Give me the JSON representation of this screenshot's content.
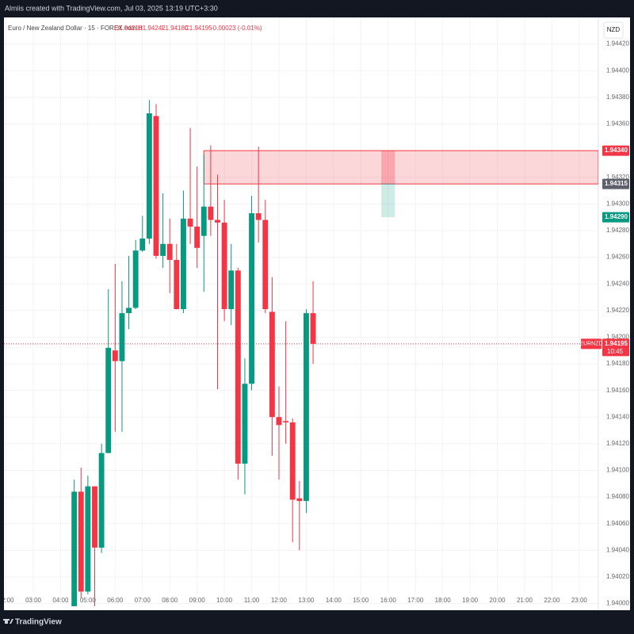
{
  "header": {
    "credit": "Almiis created with TradingView.com, Jul 03, 2025 13:19 UTC+3:30"
  },
  "footer": {
    "brand": "TradingView"
  },
  "chart_data": {
    "type": "candlestick",
    "legend": {
      "symbol": "Euro / New Zealand Dollar · 15 · FOREX.com",
      "open": "O1.94218",
      "high": "H1.94242",
      "low": "L1.94180",
      "close": "C1.94195",
      "change": "-0.00023 (-0.01%)"
    },
    "currency": "NZD",
    "up_color": "#089981",
    "down_color": "#f23645",
    "x": [
      4.5,
      4.75,
      5,
      5.25,
      5.5,
      5.75,
      6,
      6.25,
      6.5,
      6.75,
      7,
      7.25,
      7.5,
      7.75,
      8,
      8.25,
      8.5,
      8.75,
      9,
      9.25,
      9.5,
      9.75,
      10,
      10.25,
      10.5,
      10.75,
      11,
      11.25,
      11.5,
      11.75,
      12,
      12.25,
      12.5,
      12.75,
      13,
      13.25
    ],
    "open": [
      1.93998,
      1.94084,
      1.94009,
      1.94088,
      1.94042,
      1.94113,
      1.9419,
      1.94182,
      1.94218,
      1.94222,
      1.94265,
      1.94274,
      1.94366,
      1.94261,
      1.9427,
      1.94258,
      1.94221,
      1.94289,
      1.94283,
      1.94276,
      1.94298,
      1.94288,
      1.94286,
      1.94221,
      1.9425,
      1.94105,
      1.94165,
      1.94293,
      1.94288,
      1.94219,
      1.9414,
      1.94137,
      1.94136,
      1.94079,
      1.94077,
      1.94218
    ],
    "high": [
      1.94093,
      1.94102,
      1.94096,
      1.94088,
      1.9412,
      1.94236,
      1.94255,
      1.94242,
      1.94261,
      1.94273,
      1.94291,
      1.94378,
      1.94375,
      1.94308,
      1.94289,
      1.9427,
      1.9431,
      1.94357,
      1.94328,
      1.94337,
      1.94344,
      1.94322,
      1.94303,
      1.9427,
      1.94252,
      1.94184,
      1.94306,
      1.94343,
      1.94303,
      1.94245,
      1.94163,
      1.94212,
      1.94139,
      1.94092,
      1.94221,
      1.94242
    ],
    "low": [
      1.93998,
      1.94004,
      1.94007,
      1.93998,
      1.94038,
      1.94113,
      1.94129,
      1.94129,
      1.94206,
      1.94221,
      1.94264,
      1.9427,
      1.94259,
      1.94252,
      1.94233,
      1.94221,
      1.94218,
      1.9427,
      1.94252,
      1.94234,
      1.94276,
      1.94161,
      1.94212,
      1.94209,
      1.94093,
      1.94082,
      1.9416,
      1.94271,
      1.94218,
      1.94111,
      1.94093,
      1.9412,
      1.94046,
      1.9404,
      1.94068,
      1.9418
    ],
    "close": [
      1.94084,
      1.94009,
      1.94088,
      1.94042,
      1.94113,
      1.94192,
      1.94182,
      1.94218,
      1.94222,
      1.94265,
      1.94274,
      1.94368,
      1.94261,
      1.9427,
      1.94258,
      1.94221,
      1.94289,
      1.94283,
      1.94267,
      1.94298,
      1.94288,
      1.94286,
      1.94221,
      1.9425,
      1.94105,
      1.94165,
      1.94293,
      1.94288,
      1.94221,
      1.9414,
      1.94134,
      1.94136,
      1.94078,
      1.94077,
      1.94218,
      1.94195
    ],
    "xlim": [
      1.926,
      23.7
    ],
    "ylim": [
      1.93995,
      1.9444
    ],
    "xticks": [
      {
        "value": 2,
        "label": "02:00"
      },
      {
        "value": 3,
        "label": "03:00"
      },
      {
        "value": 4,
        "label": "04:00"
      },
      {
        "value": 5,
        "label": "05:00"
      },
      {
        "value": 6,
        "label": "06:00"
      },
      {
        "value": 7,
        "label": "07:00"
      },
      {
        "value": 8,
        "label": "08:00"
      },
      {
        "value": 9,
        "label": "09:00"
      },
      {
        "value": 10,
        "label": "10:00"
      },
      {
        "value": 11,
        "label": "11:00"
      },
      {
        "value": 12,
        "label": "12:00"
      },
      {
        "value": 13,
        "label": "13:00"
      },
      {
        "value": 14,
        "label": "14:00"
      },
      {
        "value": 15,
        "label": "15:00"
      },
      {
        "value": 16,
        "label": "16:00"
      },
      {
        "value": 17,
        "label": "17:00"
      },
      {
        "value": 18,
        "label": "18:00"
      },
      {
        "value": 19,
        "label": "19:00"
      },
      {
        "value": 20,
        "label": "20:00"
      },
      {
        "value": 21,
        "label": "21:00"
      },
      {
        "value": 22,
        "label": "22:00"
      },
      {
        "value": 23,
        "label": "23:00"
      }
    ],
    "yticks": [
      {
        "value": 1.94,
        "label": "1.94000"
      },
      {
        "value": 1.9402,
        "label": "1.94020"
      },
      {
        "value": 1.9404,
        "label": "1.94040"
      },
      {
        "value": 1.9406,
        "label": "1.94060"
      },
      {
        "value": 1.9408,
        "label": "1.94080"
      },
      {
        "value": 1.941,
        "label": "1.94100"
      },
      {
        "value": 1.9412,
        "label": "1.94120"
      },
      {
        "value": 1.9414,
        "label": "1.94140"
      },
      {
        "value": 1.9416,
        "label": "1.94160"
      },
      {
        "value": 1.9418,
        "label": "1.94180"
      },
      {
        "value": 1.942,
        "label": "1.94200"
      },
      {
        "value": 1.9422,
        "label": "1.94220"
      },
      {
        "value": 1.9424,
        "label": "1.94240"
      },
      {
        "value": 1.9426,
        "label": "1.94260"
      },
      {
        "value": 1.9428,
        "label": "1.94280"
      },
      {
        "value": 1.943,
        "label": "1.94300"
      },
      {
        "value": 1.9432,
        "label": "1.94320"
      },
      {
        "value": 1.9436,
        "label": "1.94360"
      },
      {
        "value": 1.9438,
        "label": "1.94380"
      },
      {
        "value": 1.944,
        "label": "1.94400"
      },
      {
        "value": 1.9442,
        "label": "1.94420"
      }
    ],
    "zone": {
      "start": 9.25,
      "top": 1.9434,
      "bottom": 1.94315,
      "top_label": "1.94340",
      "color": "#f23645"
    },
    "position": {
      "start": 15.75,
      "end": 16.25,
      "stop": 1.9434,
      "entry": 1.94315,
      "target": 1.9429,
      "target_label": "1.94290"
    },
    "last_price": {
      "symbol": "EURNZD",
      "countdown": "10:45"
    }
  }
}
